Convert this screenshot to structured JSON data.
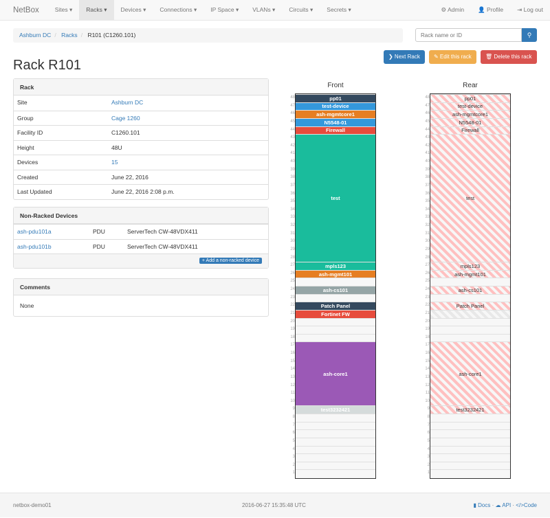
{
  "nav": {
    "brand": "NetBox",
    "menus": [
      "Sites ▾",
      "Racks ▾",
      "Devices ▾",
      "Connections ▾",
      "IP Space ▾",
      "VLANs ▾",
      "Circuits ▾",
      "Secrets ▾"
    ],
    "active": "Racks ▾",
    "admin": "⚙ Admin",
    "profile": "👤 Profile",
    "logout": "⇥ Log out"
  },
  "breadcrumb": {
    "site": "Ashburn DC",
    "racks": "Racks",
    "current": "R101 (C1260.101)"
  },
  "search": {
    "placeholder": "Rack name or ID",
    "icon": "search-icon"
  },
  "buttons": {
    "next": "❯ Next Rack",
    "edit": "✎ Edit this rack",
    "delete": "🗑 Delete this rack",
    "colors": {
      "next": "#337ab7",
      "edit": "#f0ad4e",
      "delete": "#d9534f"
    }
  },
  "title": "Rack R101",
  "rack_panel": {
    "heading": "Rack",
    "rows": [
      {
        "k": "Site",
        "v": "Ashburn DC",
        "link": true
      },
      {
        "k": "Group",
        "v": "Cage 1260",
        "link": true
      },
      {
        "k": "Facility ID",
        "v": "C1260.101"
      },
      {
        "k": "Height",
        "v": "48U"
      },
      {
        "k": "Devices",
        "v": "15",
        "link": true
      },
      {
        "k": "Created",
        "v": "June 22, 2016"
      },
      {
        "k": "Last Updated",
        "v": "June 22, 2016 2:08 p.m."
      }
    ]
  },
  "nonracked": {
    "heading": "Non-Racked Devices",
    "rows": [
      {
        "name": "ash-pdu101a",
        "role": "PDU",
        "type": "ServerTech CW-48VDX411"
      },
      {
        "name": "ash-pdu101b",
        "role": "PDU",
        "type": "ServerTech CW-48VDX411"
      }
    ],
    "add": "+ Add a non-racked device"
  },
  "comments": {
    "heading": "Comments",
    "body": "None"
  },
  "elevation": {
    "front_label": "Front",
    "rear_label": "Rear",
    "height": 48,
    "devices": [
      {
        "name": "pp01",
        "top": 48,
        "size": 1,
        "color": "#34495e"
      },
      {
        "name": "test-device",
        "top": 47,
        "size": 1,
        "color": "#3498db"
      },
      {
        "name": "ash-mgmtcore1",
        "top": 46,
        "size": 1,
        "color": "#e67e22"
      },
      {
        "name": "N5548-01",
        "top": 45,
        "size": 1,
        "color": "#3498db"
      },
      {
        "name": "Firewall",
        "top": 44,
        "size": 1,
        "color": "#e74c3c"
      },
      {
        "name": "test",
        "top": 43,
        "size": 16,
        "color": "#1abc9c"
      },
      {
        "name": "mpls123",
        "top": 27,
        "size": 1,
        "color": "#1abc9c"
      },
      {
        "name": "ash-mgmt101",
        "top": 26,
        "size": 1,
        "color": "#e67e22"
      },
      {
        "name": "ash-cs101",
        "top": 24,
        "size": 1,
        "color": "#95a5a6"
      },
      {
        "name": "Patch Panel",
        "top": 22,
        "size": 1,
        "color": "#34495e"
      },
      {
        "name": "Fortinet FW",
        "top": 21,
        "size": 1,
        "color": "#e74c3c",
        "rear_occupied_only": true
      },
      {
        "name": "ash-core1",
        "top": 17,
        "size": 8,
        "color": "#9b59b6"
      },
      {
        "name": "test3232421",
        "top": 9,
        "size": 1,
        "color": "#d5dbdb"
      }
    ]
  },
  "footer": {
    "host": "netbox-demo01",
    "time": "2016-06-27 15:35:48 UTC",
    "docs": "Docs",
    "api": "API",
    "code": "Code"
  }
}
